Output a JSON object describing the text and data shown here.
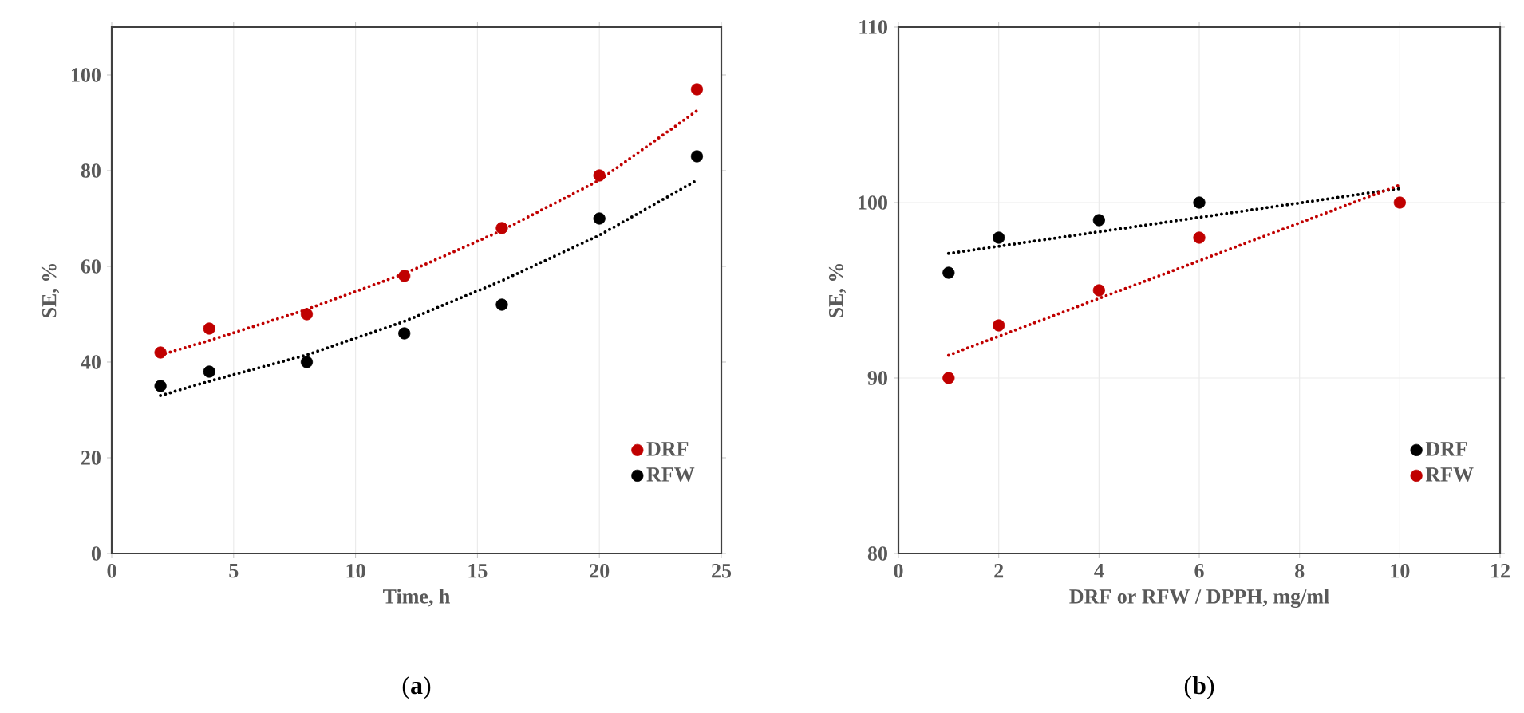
{
  "chart_data": [
    {
      "type": "scatter",
      "xlabel": "Time, h",
      "ylabel": "SE, %",
      "xlim": [
        0,
        25
      ],
      "ylim": [
        0,
        110
      ],
      "xticks": [
        0,
        5,
        10,
        15,
        20,
        25
      ],
      "yticks": [
        0,
        20,
        40,
        60,
        80,
        100
      ],
      "grid": "x",
      "legend": "bottom right",
      "annotations": [
        "(**a**)"
      ],
      "series": [
        {
          "name": "DRF",
          "marker": "circle",
          "color": "#c00000",
          "x": [
            2,
            4,
            8,
            12,
            16,
            20,
            24
          ],
          "values": [
            42,
            47,
            50,
            58,
            68,
            79,
            97
          ]
        },
        {
          "name": "RFW",
          "marker": "circle",
          "color": "#000000",
          "x": [
            2,
            4,
            8,
            12,
            16,
            20,
            24
          ],
          "values": [
            35,
            38,
            40,
            46,
            52,
            70,
            83
          ]
        },
        {
          "type": "line",
          "marker": "none",
          "line_style": "dotted",
          "color": "#c00000",
          "x": [
            2,
            4,
            8,
            12,
            16,
            20,
            24
          ],
          "values": [
            41.5,
            44.5,
            51,
            58.5,
            67.5,
            78,
            92.5
          ]
        },
        {
          "type": "line",
          "marker": "none",
          "line_style": "dotted",
          "color": "#000000",
          "x": [
            2,
            4,
            8,
            12,
            16,
            20,
            24
          ],
          "values": [
            33,
            36,
            41.5,
            48.5,
            57,
            66.5,
            78
          ]
        }
      ]
    },
    {
      "type": "scatter",
      "xlabel": "DRF or RFW / DPPH, mg/ml",
      "ylabel": "SE, %",
      "xlim": [
        0,
        12
      ],
      "ylim": [
        80,
        110
      ],
      "xticks": [
        0,
        2,
        4,
        6,
        8,
        10,
        12
      ],
      "yticks": [
        80,
        90,
        100,
        110
      ],
      "grid": true,
      "legend": "bottom right",
      "annotations": [
        "(**b**)"
      ],
      "series": [
        {
          "name": "DRF",
          "marker": "circle",
          "color": "#000000",
          "x": [
            1,
            2,
            4,
            6
          ],
          "values": [
            96,
            98,
            99,
            100
          ]
        },
        {
          "name": "RFW",
          "marker": "circle",
          "color": "#c00000",
          "x": [
            1,
            2,
            4,
            6,
            10
          ],
          "values": [
            90,
            93,
            95,
            98,
            100
          ]
        },
        {
          "type": "line",
          "marker": "none",
          "line_style": "dotted",
          "color": "#000000",
          "x": [
            1,
            10
          ],
          "values": [
            97.1,
            100.8
          ]
        },
        {
          "type": "line",
          "marker": "none",
          "line_style": "dotted",
          "color": "#c00000",
          "x": [
            1,
            10
          ],
          "values": [
            91.3,
            101
          ]
        }
      ]
    }
  ]
}
